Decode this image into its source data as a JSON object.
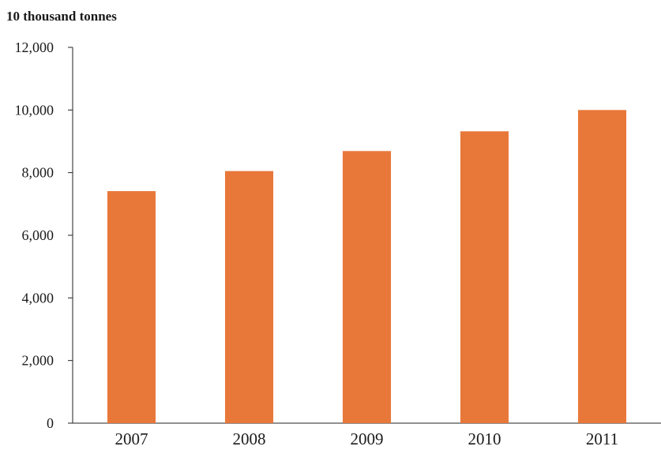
{
  "chart_data": {
    "type": "bar",
    "unit_label": "10 thousand tonnes",
    "title": "",
    "xlabel": "",
    "ylabel": "",
    "categories": [
      "2007",
      "2008",
      "2009",
      "2010",
      "2011"
    ],
    "series": [
      {
        "values": [
          7410,
          8050,
          8690,
          9320,
          10000
        ]
      }
    ],
    "ylim": [
      0,
      12000
    ],
    "yticks": [
      0,
      2000,
      4000,
      6000,
      8000,
      10000,
      12000
    ],
    "ytick_labels": [
      "0",
      "2,000",
      "4,000",
      "6,000",
      "8,000",
      "10,000",
      "12,000"
    ],
    "bar_color": "#E8783A",
    "grid": false,
    "legend": "none"
  }
}
